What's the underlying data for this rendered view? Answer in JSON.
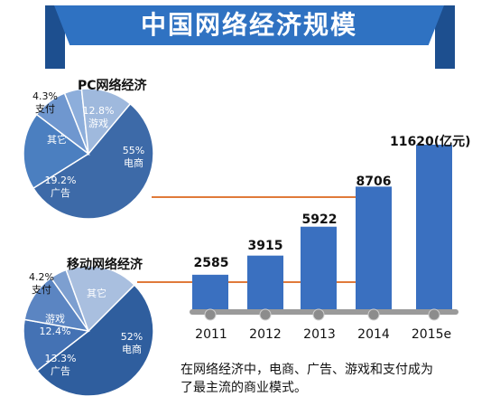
{
  "title": "中国网络经济规模",
  "pc_pie": {
    "title": "PC网络经济",
    "slices": [
      {
        "name": "电商",
        "pct_text": "55%",
        "value": 55,
        "color": "#3d6aa8"
      },
      {
        "name": "广告",
        "pct_text": "19.2%",
        "value": 19.2,
        "color": "#4b7fc0"
      },
      {
        "name": "其它",
        "pct_text": "",
        "value": 8.7,
        "color": "#6f97cf"
      },
      {
        "name": "支付",
        "pct_text": "4.3%",
        "value": 4.3,
        "color": "#8daedb"
      },
      {
        "name": "游戏",
        "pct_text": "12.8%",
        "value": 12.8,
        "color": "#9fb9dd"
      }
    ]
  },
  "mobile_pie": {
    "title": "移动网络经济",
    "slices": [
      {
        "name": "电商",
        "pct_text": "52%",
        "value": 52,
        "color": "#2f5e9e"
      },
      {
        "name": "广告",
        "pct_text": "13.3%",
        "value": 13.3,
        "color": "#4472b4"
      },
      {
        "name": "游戏",
        "pct_text": "12.4%",
        "value": 12.4,
        "color": "#5b85c2"
      },
      {
        "name": "支付",
        "pct_text": "4.2%",
        "value": 4.2,
        "color": "#7d9fd0"
      },
      {
        "name": "其它",
        "pct_text": "",
        "value": 18.1,
        "color": "#a9bfdf"
      }
    ]
  },
  "chart_data": {
    "type": "bar",
    "categories": [
      "2011",
      "2012",
      "2013",
      "2014",
      "2015e"
    ],
    "values": [
      2585,
      3915,
      5922,
      8706,
      11620
    ],
    "value_labels": [
      "2585",
      "3915",
      "5922",
      "8706",
      "11620(亿元)"
    ],
    "unit": "亿元",
    "ylim": [
      0,
      12000
    ],
    "bar_color": "#3a70c0"
  },
  "note": {
    "line1": "在网络经济中，电商、广告、游戏和支付成为",
    "line2": "了最主流的商业模式。"
  },
  "colors": {
    "accent": "#2f72c2",
    "connector": "#e07a3a"
  }
}
